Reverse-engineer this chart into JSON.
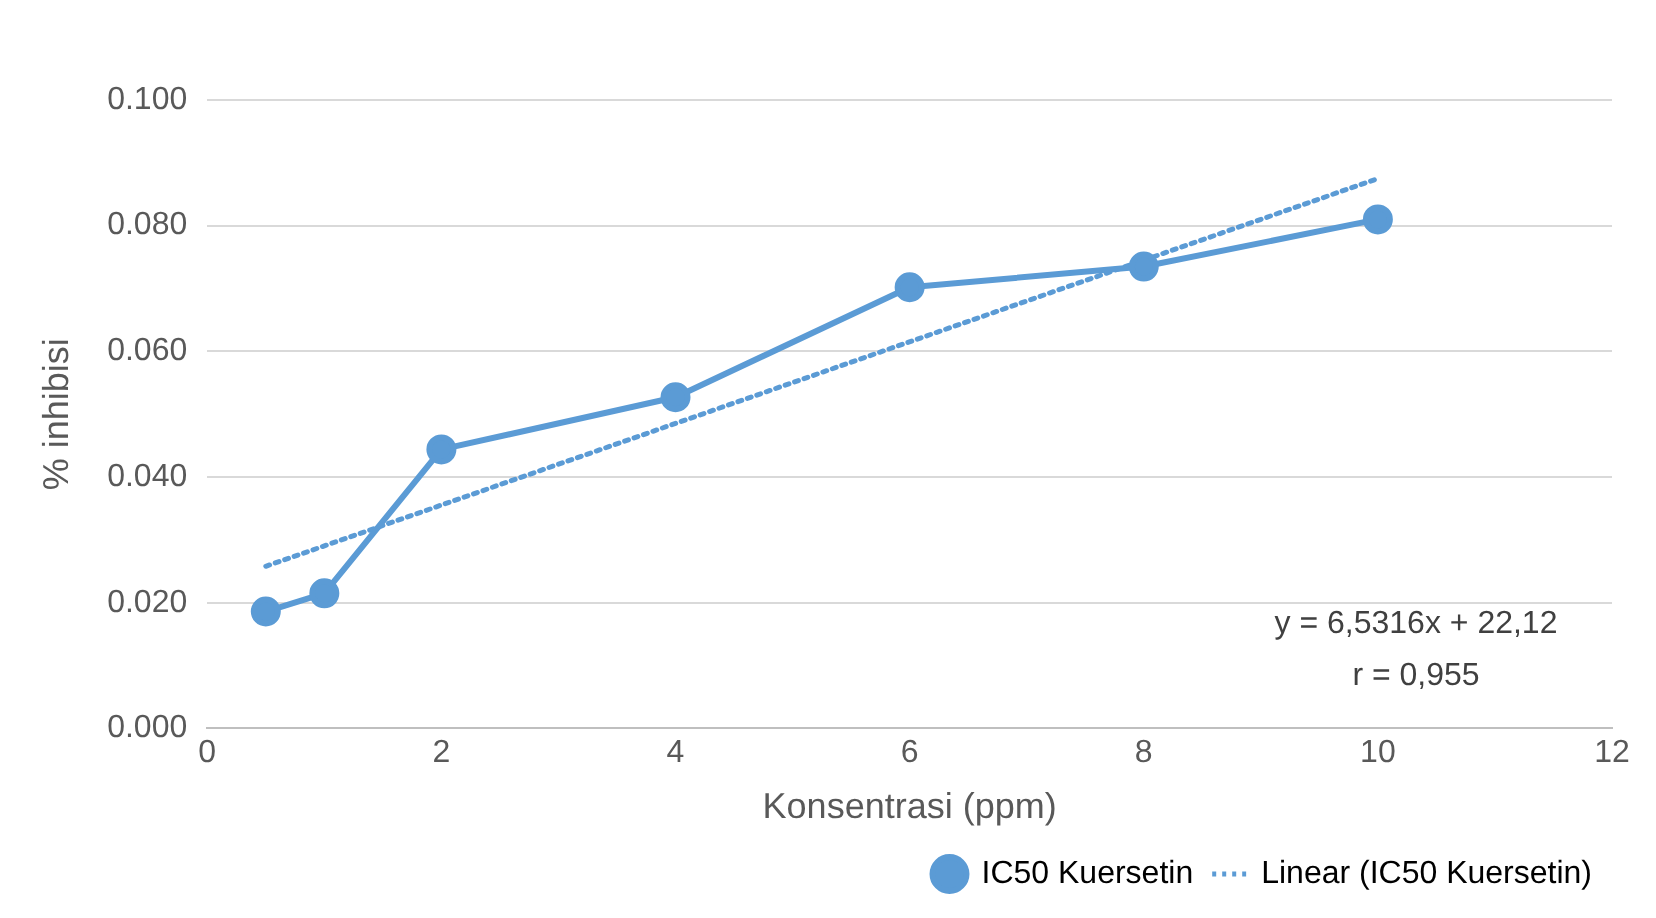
{
  "chart_data": {
    "type": "line",
    "xlabel": "Konsentrasi (ppm)",
    "ylabel": "% inhibisi",
    "xlim": [
      0,
      12
    ],
    "xticks": [
      0,
      2,
      4,
      6,
      8,
      10,
      12
    ],
    "ylim": [
      0,
      0.1
    ],
    "yticks": [
      {
        "value": 0,
        "label": "0.000"
      },
      {
        "value": 0.02,
        "label": "0.020"
      },
      {
        "value": 0.04,
        "label": "0.040"
      },
      {
        "value": 0.06,
        "label": "0.060"
      },
      {
        "value": 0.08,
        "label": "0.080"
      },
      {
        "value": 0.1,
        "label": "0.100"
      }
    ],
    "grid": "y",
    "legend": "bottom",
    "marker": "circle",
    "line_style": "solid",
    "series": [
      {
        "name": "IC50 Kuersetin",
        "type": "line",
        "color": "#5b9bd5",
        "x": [
          0.5,
          1,
          2,
          4,
          6,
          8,
          10
        ],
        "values": [
          0.0186,
          0.0215,
          0.0444,
          0.0527,
          0.0702,
          0.0735,
          0.081
        ]
      },
      {
        "name": "Linear (IC50 Kuersetin)",
        "type": "line",
        "color": "#5b9bd5",
        "x": [
          0.5,
          10
        ],
        "values": [
          0.0258,
          0.0875
        ],
        "marker": "none",
        "line_style": "dotted"
      }
    ],
    "annotations": [
      "y = 6,5316x + 22,12",
      "r = 0,955"
    ]
  }
}
